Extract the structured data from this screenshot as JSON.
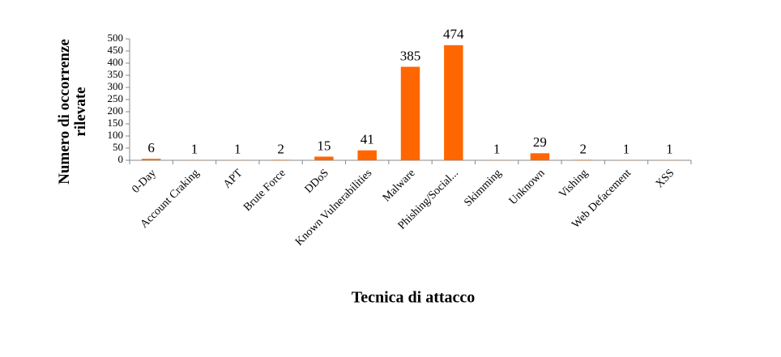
{
  "chart_data": {
    "type": "bar",
    "x_label": "Tecnica di attacco",
    "y_label": "Numero di occorrenze rilevate",
    "categories": [
      "0-Day",
      "Account Craking",
      "APT",
      "Brute Force",
      "DDoS",
      "Known Vulnerabilities",
      "Malware",
      "Phishing/Social...",
      "Skimming",
      "Unknown",
      "Vishing",
      "Web Defacement",
      "XSS"
    ],
    "values": [
      6,
      1,
      1,
      2,
      15,
      41,
      385,
      474,
      1,
      29,
      2,
      1,
      1
    ],
    "color": "#ff6600",
    "ylim": [
      0,
      500
    ],
    "yticks": [
      0,
      50,
      100,
      150,
      200,
      250,
      300,
      350,
      400,
      450,
      500
    ],
    "grid": false
  }
}
